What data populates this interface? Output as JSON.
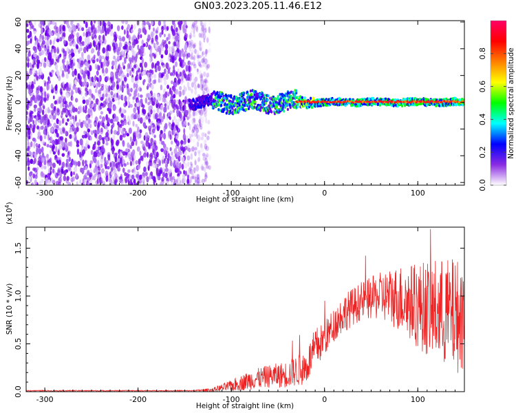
{
  "title": "GN03.2023.205.11.46.E12",
  "chart_data": [
    {
      "type": "heatmap",
      "xlabel": "Height of straight line (km)",
      "ylabel": "Frequency (Hz)",
      "xlim": [
        -320,
        150
      ],
      "ylim": [
        -62,
        61
      ],
      "x_ticks": [
        -300,
        -200,
        -100,
        0,
        100
      ],
      "y_ticks": [
        -60,
        -40,
        -20,
        0,
        20,
        40,
        60
      ],
      "noise_region_x": [
        -320,
        -135
      ],
      "signal_center_hz": 0,
      "colorbar": {
        "label": "Normalized spectral amplitude",
        "range": [
          0.0,
          1.0
        ],
        "ticks": [
          "0.0",
          "0.2",
          "0.4",
          "0.6",
          "0.8"
        ],
        "colors": [
          "#ffffff",
          "#8a2be2",
          "#0000ff",
          "#00ffff",
          "#00ff00",
          "#ffff00",
          "#ff8000",
          "#ff0000",
          "#ff0066"
        ]
      }
    },
    {
      "type": "line",
      "xlabel": "Height of straight line (km)",
      "ylabel": "SNR (10 * v/v)",
      "y_multiplier": "(x10",
      "y_multiplier_exp": "4",
      "y_multiplier_close": ")",
      "xlim": [
        -320,
        150
      ],
      "ylim": [
        0,
        1.72
      ],
      "x_ticks": [
        -300,
        -200,
        -100,
        0,
        100
      ],
      "y_ticks": [
        "0.0",
        "0.5",
        "1.0",
        "1.5"
      ],
      "y_tick_values": [
        0.0,
        0.5,
        1.0,
        1.5
      ],
      "series": [
        {
          "color": "#ee2222",
          "envelope_x": [
            -320,
            -140,
            -120,
            -100,
            -80,
            -60,
            -40,
            -20,
            -10,
            0,
            10,
            20,
            40,
            60,
            80,
            100,
            120,
            140,
            150
          ],
          "envelope_mean": [
            0.01,
            0.01,
            0.02,
            0.06,
            0.12,
            0.16,
            0.18,
            0.25,
            0.45,
            0.55,
            0.7,
            0.82,
            0.95,
            1.0,
            0.98,
            0.9,
            0.85,
            0.8,
            0.78
          ],
          "envelope_amplitude": [
            0.005,
            0.005,
            0.02,
            0.06,
            0.1,
            0.12,
            0.14,
            0.18,
            0.22,
            0.18,
            0.18,
            0.2,
            0.2,
            0.25,
            0.35,
            0.45,
            0.55,
            0.6,
            0.6
          ]
        }
      ]
    }
  ]
}
